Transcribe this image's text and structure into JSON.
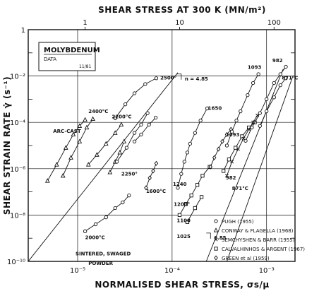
{
  "chart_data": {
    "type": "scatter",
    "title": "SHEAR STRESS AT 300 K (MN/m²)",
    "xlabel": "NORMALISED SHEAR STRESS, σs/μ",
    "ylabel": "SHEAR STRAIN RATE γ̇ (s⁻¹)",
    "xscale": "log",
    "yscale": "log",
    "xlim": [
      3e-06,
      0.002
    ],
    "ylim": [
      1e-10,
      1
    ],
    "x_ticks": [
      {
        "v": 1e-05,
        "label": "10⁻⁵"
      },
      {
        "v": 0.0001,
        "label": "10⁻⁴"
      },
      {
        "v": 0.001,
        "label": "10⁻³"
      }
    ],
    "y_ticks": [
      {
        "v": 1e-10,
        "label": "10⁻¹⁰"
      },
      {
        "v": 1e-08,
        "label": "10⁻⁸"
      },
      {
        "v": 1e-06,
        "label": "10⁻⁶"
      },
      {
        "v": 0.0001,
        "label": "10⁻⁴"
      },
      {
        "v": 0.01,
        "label": "10⁻²"
      },
      {
        "v": 1,
        "label": "1"
      }
    ],
    "top_ticks": [
      {
        "v": 1.2e-05,
        "label": "1"
      },
      {
        "v": 0.00012,
        "label": "10"
      },
      {
        "v": 0.0012,
        "label": "100"
      }
    ],
    "material_box": {
      "name": "MOLYBDENUM",
      "sub": "DATA",
      "date": "11/81"
    },
    "legend": [
      {
        "marker": "circle",
        "label": "PUGH (1955)"
      },
      {
        "marker": "triangle",
        "label": "CONWAY & FLAGELLA (1968)"
      },
      {
        "marker": "cross",
        "label": "SEMCHYSHEN & BARR (1955)"
      },
      {
        "marker": "square",
        "label": "CALVALHINHOS & ARGENT (1967)"
      },
      {
        "marker": "diamond",
        "label": "GREEN et al (1959)"
      }
    ],
    "series": [
      {
        "marker": "triangle",
        "points": [
          [
            4.8e-06,
            3e-07
          ],
          [
            6e-06,
            1.5e-06
          ],
          [
            7.5e-06,
            8e-06
          ],
          [
            9e-06,
            3e-05
          ],
          [
            1.05e-05,
            7e-05
          ],
          [
            1.2e-05,
            0.00013
          ]
        ]
      },
      {
        "marker": "triangle",
        "points": [
          [
            7e-06,
            5e-07
          ],
          [
            8.5e-06,
            3e-06
          ],
          [
            1.05e-05,
            1.5e-05
          ],
          [
            1.25e-05,
            6e-05
          ],
          [
            1.45e-05,
            0.00014
          ]
        ]
      },
      {
        "marker": "triangle",
        "points": [
          [
            1.3e-05,
            1.5e-06
          ],
          [
            1.6e-05,
            4e-06
          ],
          [
            2e-05,
            1.2e-05
          ],
          [
            2.5e-05,
            3.5e-05
          ],
          [
            2.9e-05,
            8e-05
          ]
        ]
      },
      {
        "marker": "triangle",
        "points": [
          [
            2.2e-05,
            7e-07
          ],
          [
            2.5e-05,
            2e-06
          ],
          [
            2.8e-05,
            5e-06
          ],
          [
            3.1e-05,
            1.5e-05
          ]
        ]
      },
      {
        "marker": "circle",
        "points": [
          [
            1.2e-05,
            2e-09
          ],
          [
            1.55e-05,
            4e-09
          ],
          [
            2e-05,
            8e-09
          ],
          [
            2.5e-05,
            2e-08
          ],
          [
            3e-05,
            3.5e-08
          ],
          [
            3.5e-05,
            7e-08
          ]
        ]
      },
      {
        "marker": "circle",
        "points": [
          [
            2.6e-05,
            2e-06
          ],
          [
            3.3e-05,
            8e-06
          ],
          [
            4e-05,
            3.5e-05
          ],
          [
            4.7e-05,
            8e-05
          ],
          [
            5.5e-05,
            0.00025
          ]
        ]
      },
      {
        "marker": "circle",
        "points": [
          [
            2.5e-05,
            0.00015
          ],
          [
            3.2e-05,
            0.0006
          ],
          [
            4e-05,
            0.0018
          ],
          [
            5.2e-05,
            0.0045
          ],
          [
            6.8e-05,
            0.008
          ]
        ]
      },
      {
        "marker": "circle",
        "points": [
          [
            4e-05,
            1.5e-05
          ],
          [
            4.7e-05,
            3e-05
          ],
          [
            5.7e-05,
            8e-05
          ],
          [
            6.7e-05,
            0.00016
          ]
        ]
      },
      {
        "marker": "diamond",
        "points": [
          [
            5.3e-05,
            1.5e-07
          ],
          [
            5.8e-05,
            4e-07
          ],
          [
            6.3e-05,
            8e-07
          ],
          [
            6.8e-05,
            1.7e-06
          ]
        ]
      },
      {
        "marker": "circle",
        "points": [
          [
            0.000115,
            1.5e-07
          ],
          [
            0.000125,
            6e-07
          ],
          [
            0.000135,
            2e-06
          ],
          [
            0.000145,
            5e-06
          ],
          [
            0.000155,
            1.2e-05
          ],
          [
            0.000175,
            3.5e-05
          ],
          [
            0.0002,
            0.00012
          ],
          [
            0.000235,
            0.0004
          ]
        ]
      },
      {
        "marker": "square",
        "points": [
          [
            0.00012,
            1e-08
          ],
          [
            0.00014,
            3e-08
          ],
          [
            0.00016,
            7e-08
          ],
          [
            0.000185,
            2e-07
          ],
          [
            0.00021,
            5e-07
          ],
          [
            0.00025,
            1.2e-06
          ]
        ]
      },
      {
        "marker": "square",
        "points": [
          [
            0.000145,
            5e-09
          ],
          [
            0.000175,
            2e-08
          ],
          [
            0.000205,
            6e-08
          ]
        ]
      },
      {
        "marker": "diamond",
        "points": [
          [
            0.000255,
            1.2e-06
          ],
          [
            0.00028,
            3e-06
          ],
          [
            0.00031,
            7e-06
          ],
          [
            0.00034,
            1.5e-05
          ],
          [
            0.00038,
            3e-05
          ],
          [
            0.00042,
            5e-05
          ]
        ]
      },
      {
        "marker": "square",
        "points": [
          [
            0.00035,
            8e-07
          ],
          [
            0.0004,
            2.5e-06
          ],
          [
            0.00047,
            8e-06
          ],
          [
            0.00055,
            2.5e-05
          ],
          [
            0.00065,
            6e-05
          ],
          [
            0.00075,
            0.0001
          ]
        ]
      },
      {
        "marker": "circle",
        "points": [
          [
            0.00038,
            1e-05
          ],
          [
            0.00043,
            4e-05
          ],
          [
            0.00048,
            0.00012
          ],
          [
            0.00053,
            0.0003
          ],
          [
            0.00063,
            0.0015
          ],
          [
            0.00072,
            0.005
          ],
          [
            0.00082,
            0.012
          ]
        ]
      },
      {
        "marker": "circle",
        "points": [
          [
            0.0006,
            1.6e-05
          ],
          [
            0.0007,
            6e-05
          ],
          [
            0.00085,
            0.00025
          ],
          [
            0.001,
            0.001
          ],
          [
            0.0012,
            0.005
          ],
          [
            0.0014,
            0.012
          ],
          [
            0.0016,
            0.025
          ]
        ]
      },
      {
        "marker": "circle",
        "points": [
          [
            0.00085,
            7e-05
          ],
          [
            0.001,
            0.0003
          ],
          [
            0.0012,
            0.0012
          ],
          [
            0.0014,
            0.004
          ],
          [
            0.0016,
            0.008
          ]
        ]
      },
      {
        "marker": "cross",
        "points": [
          [
            0.00038,
            5e-07
          ],
          [
            0.00043,
            2e-06
          ],
          [
            0.0005,
            7e-06
          ],
          [
            0.00057,
            2e-05
          ],
          [
            0.00065,
            5e-05
          ],
          [
            0.00072,
            0.0001
          ],
          [
            0.0008,
            0.0002
          ]
        ]
      }
    ],
    "lines": [
      {
        "from": [
          3e-06,
          1e-10
        ],
        "to": [
          0.000115,
          0.014
        ]
      },
      {
        "from": [
          0.00023,
          1e-10
        ],
        "to": [
          0.0015,
          0.02
        ]
      },
      {
        "from": [
          0.00038,
          1e-10
        ],
        "to": [
          0.0019,
          0.01
        ]
      }
    ],
    "slope_labels": [
      {
        "text": "n = 4.85",
        "x": 0.000125,
        "y": 0.008
      },
      {
        "text": "6.85",
        "x": 0.000255,
        "y": 1.1e-09
      }
    ],
    "annotations": [
      {
        "text": "2500°",
        "x": 7.5e-05,
        "y": 0.007
      },
      {
        "text": "2400°C",
        "x": 1.3e-05,
        "y": 0.00025
      },
      {
        "text": "2200°C",
        "x": 2.3e-05,
        "y": 0.00015
      },
      {
        "text": "ARC-CAST",
        "x": 5.5e-06,
        "y": 3.5e-05
      },
      {
        "text": "2250°",
        "x": 2.9e-05,
        "y": 5e-07
      },
      {
        "text": "1600°C",
        "x": 5.3e-05,
        "y": 9e-08
      },
      {
        "text": "2000°C",
        "x": 1.2e-05,
        "y": 9e-10
      },
      {
        "text": "SINTERED, SWAGED",
        "x": 9.5e-06,
        "y": 1.8e-10
      },
      {
        "text": "POWDER",
        "x": 1.3e-05,
        "y": 7e-11
      },
      {
        "text": "1650",
        "x": 0.00024,
        "y": 0.00035
      },
      {
        "text": "1093",
        "x": 0.00063,
        "y": 0.02
      },
      {
        "text": "982",
        "x": 0.00115,
        "y": 0.04
      },
      {
        "text": "871°C",
        "x": 0.00145,
        "y": 0.007
      },
      {
        "text": "1240",
        "x": 0.000102,
        "y": 1.8e-07
      },
      {
        "text": "1200°",
        "x": 0.000104,
        "y": 2.5e-08
      },
      {
        "text": "1100",
        "x": 0.000112,
        "y": 5e-09
      },
      {
        "text": "1025",
        "x": 0.000112,
        "y": 1e-09
      },
      {
        "text": "1093",
        "x": 0.00037,
        "y": 2.5e-05
      },
      {
        "text": "982",
        "x": 0.00037,
        "y": 3.5e-07
      },
      {
        "text": "871°C",
        "x": 0.00043,
        "y": 1.2e-07
      }
    ]
  }
}
